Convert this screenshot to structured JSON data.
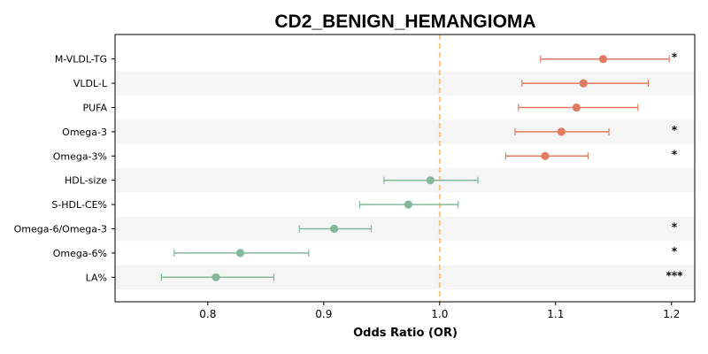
{
  "chart_data": {
    "type": "forest",
    "title": "CD2_BENIGN_HEMANGIOMA",
    "xlabel": "Odds Ratio (OR)",
    "xlim": [
      0.72,
      1.22
    ],
    "xticks": [
      "0.8",
      "0.9",
      "1.0",
      "1.1",
      "1.2"
    ],
    "xtick_values": [
      0.8,
      0.9,
      1.0,
      1.1,
      1.2
    ],
    "reference_line": 1.0,
    "colors": {
      "positive": "#e07b62",
      "negative": "#85b79d",
      "reference": "#f5c57e",
      "band": "#f5f5f5"
    },
    "rows": [
      {
        "label": "M-VLDL-TG",
        "or": 1.141,
        "low": 1.087,
        "high": 1.198,
        "sig": "*"
      },
      {
        "label": "VLDL-L",
        "or": 1.124,
        "low": 1.071,
        "high": 1.18,
        "sig": ""
      },
      {
        "label": "PUFA",
        "or": 1.118,
        "low": 1.068,
        "high": 1.171,
        "sig": ""
      },
      {
        "label": "Omega-3",
        "or": 1.105,
        "low": 1.065,
        "high": 1.146,
        "sig": "*"
      },
      {
        "label": "Omega-3%",
        "or": 1.091,
        "low": 1.057,
        "high": 1.128,
        "sig": "*"
      },
      {
        "label": "HDL-size",
        "or": 0.992,
        "low": 0.952,
        "high": 1.033,
        "sig": ""
      },
      {
        "label": "S-HDL-CE%",
        "or": 0.973,
        "low": 0.931,
        "high": 1.016,
        "sig": ""
      },
      {
        "label": "Omega-6/Omega-3",
        "or": 0.909,
        "low": 0.879,
        "high": 0.941,
        "sig": "*"
      },
      {
        "label": "Omega-6%",
        "or": 0.828,
        "low": 0.771,
        "high": 0.887,
        "sig": "*"
      },
      {
        "label": "LA%",
        "or": 0.807,
        "low": 0.76,
        "high": 0.857,
        "sig": "***"
      }
    ]
  }
}
